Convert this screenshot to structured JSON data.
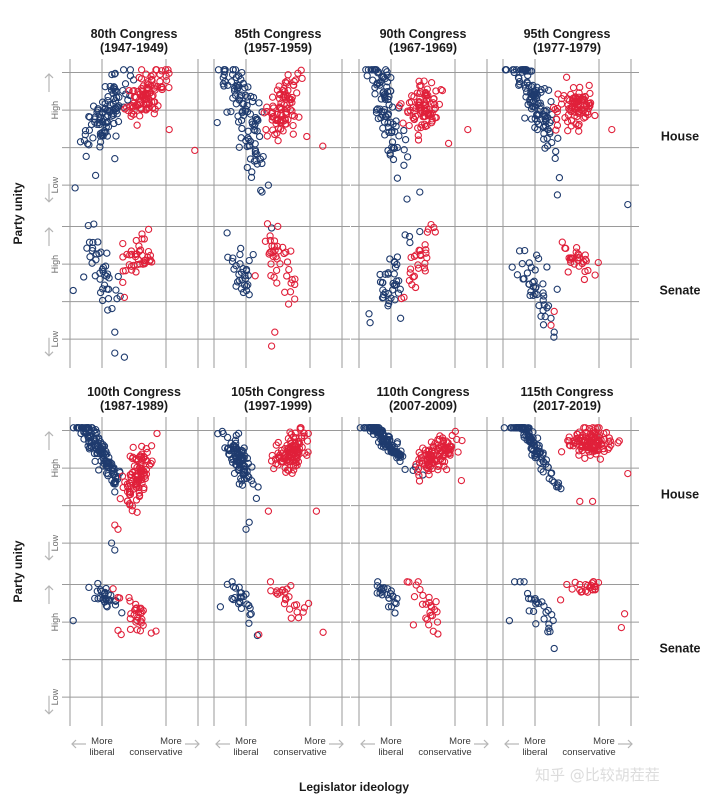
{
  "chart_data": {
    "type": "scatter",
    "y_axis_title": "Party unity",
    "x_axis_title": "Legislator ideology",
    "y_tick_high": "High",
    "y_tick_low": "Low",
    "x_label_left": [
      "More",
      "liberal"
    ],
    "x_label_right": [
      "More",
      "conservative"
    ],
    "row_labels": [
      "House",
      "Senate",
      "House",
      "Senate"
    ],
    "colors": {
      "democrat": "#1f3b6e",
      "republican": "#e0203a",
      "grid": "#9a9a9a",
      "arrow": "#b5b5b5"
    },
    "x_range": [
      -1,
      1
    ],
    "y_range": [
      0,
      1
    ],
    "watermark": "知乎 @比较胡茬茬",
    "panels": [
      {
        "title": "80th Congress",
        "years": "(1947-1949)",
        "chamber": "House",
        "dem": {
          "cx": -0.45,
          "cy": 0.66,
          "sx": 0.17,
          "sy": 0.1,
          "n": 100,
          "slope": 0.55,
          "out": [
            [
              -0.92,
              0.13
            ],
            [
              -0.6,
              0.22
            ],
            [
              -0.3,
              0.34
            ]
          ]
        },
        "rep": {
          "cx": 0.2,
          "cy": 0.8,
          "sx": 0.16,
          "sy": 0.08,
          "n": 100,
          "slope": 0.3,
          "out": [
            [
              0.95,
              0.4
            ],
            [
              0.55,
              0.55
            ]
          ]
        }
      },
      {
        "title": "85th Congress",
        "years": "(1957-1959)",
        "chamber": "House",
        "dem": {
          "cx": -0.55,
          "cy": 0.7,
          "sx": 0.17,
          "sy": 0.15,
          "n": 100,
          "slope": -1.1,
          "out": [
            [
              -0.25,
              0.1
            ],
            [
              -0.15,
              0.15
            ],
            [
              -0.95,
              0.6
            ]
          ]
        },
        "rep": {
          "cx": 0.08,
          "cy": 0.7,
          "sx": 0.15,
          "sy": 0.09,
          "n": 90,
          "slope": 0.35,
          "out": [
            [
              0.7,
              0.43
            ],
            [
              0.45,
              0.5
            ]
          ]
        }
      },
      {
        "title": "90th Congress",
        "years": "(1967-1969)",
        "chamber": "House",
        "dem": {
          "cx": -0.58,
          "cy": 0.72,
          "sx": 0.15,
          "sy": 0.13,
          "n": 90,
          "slope": -1.0,
          "out": [
            [
              -0.25,
              0.05
            ],
            [
              -0.05,
              0.1
            ],
            [
              -0.4,
              0.2
            ]
          ]
        },
        "rep": {
          "cx": 0.0,
          "cy": 0.7,
          "sx": 0.15,
          "sy": 0.09,
          "n": 90,
          "slope": 0.2,
          "out": [
            [
              0.7,
              0.55
            ],
            [
              0.4,
              0.45
            ]
          ]
        }
      },
      {
        "title": "95th Congress",
        "years": "(1977-1979)",
        "chamber": "House",
        "dem": {
          "cx": -0.5,
          "cy": 0.75,
          "sx": 0.18,
          "sy": 0.1,
          "n": 110,
          "slope": -0.9,
          "out": [
            [
              -0.65,
              0.97
            ],
            [
              -0.58,
              0.97
            ],
            [
              -0.15,
              0.08
            ],
            [
              0.95,
              0.01
            ]
          ]
        },
        "rep": {
          "cx": 0.12,
          "cy": 0.7,
          "sx": 0.15,
          "sy": 0.09,
          "n": 90,
          "slope": 0.0,
          "out": [
            [
              0.7,
              0.55
            ]
          ]
        }
      },
      {
        "title": "",
        "years": "",
        "chamber": "Senate",
        "dem": {
          "cx": -0.5,
          "cy": 0.63,
          "sx": 0.13,
          "sy": 0.12,
          "n": 40,
          "slope": -0.6,
          "out": [
            [
              -0.95,
              0.5
            ],
            [
              -0.3,
              0.2
            ],
            [
              -0.3,
              0.05
            ],
            [
              -0.15,
              0.02
            ]
          ]
        },
        "rep": {
          "cx": 0.05,
          "cy": 0.75,
          "sx": 0.12,
          "sy": 0.07,
          "n": 40,
          "slope": 0.2,
          "out": [
            [
              -0.15,
              0.45
            ]
          ]
        }
      },
      {
        "title": "",
        "years": "",
        "chamber": "Senate",
        "dem": {
          "cx": -0.55,
          "cy": 0.63,
          "sx": 0.13,
          "sy": 0.08,
          "n": 30,
          "slope": -0.4,
          "out": [
            [
              -0.1,
              0.95
            ]
          ]
        },
        "rep": {
          "cx": 0.0,
          "cy": 0.7,
          "sx": 0.15,
          "sy": 0.12,
          "n": 40,
          "slope": -0.4,
          "out": [
            [
              -0.1,
              0.1
            ],
            [
              -0.05,
              0.2
            ]
          ]
        }
      },
      {
        "title": "",
        "years": "",
        "chamber": "Senate",
        "dem": {
          "cx": -0.5,
          "cy": 0.55,
          "sx": 0.15,
          "sy": 0.1,
          "n": 40,
          "slope": 0.5,
          "out": [
            [
              -0.35,
              0.3
            ]
          ]
        },
        "rep": {
          "cx": -0.05,
          "cy": 0.7,
          "sx": 0.13,
          "sy": 0.1,
          "n": 30,
          "slope": 1.0,
          "out": []
        }
      },
      {
        "title": "",
        "years": "",
        "chamber": "Senate",
        "dem": {
          "cx": -0.5,
          "cy": 0.55,
          "sx": 0.15,
          "sy": 0.1,
          "n": 40,
          "slope": -0.7,
          "out": [
            [
              -0.25,
              0.3
            ],
            [
              -0.2,
              0.2
            ]
          ]
        },
        "rep": {
          "cx": 0.15,
          "cy": 0.72,
          "sx": 0.13,
          "sy": 0.05,
          "n": 30,
          "slope": -0.3,
          "out": [
            [
              -0.25,
              0.25
            ],
            [
              -0.2,
              0.35
            ]
          ]
        }
      },
      {
        "title": "100th Congress",
        "years": "(1987-1989)",
        "chamber": "House",
        "dem": {
          "cx": -0.55,
          "cy": 0.82,
          "sx": 0.18,
          "sy": 0.06,
          "n": 130,
          "slope": -0.7,
          "out": [
            [
              -0.3,
              0.1
            ],
            [
              -0.35,
              0.15
            ]
          ]
        },
        "rep": {
          "cx": 0.05,
          "cy": 0.63,
          "sx": 0.12,
          "sy": 0.09,
          "n": 100,
          "slope": 0.6,
          "out": [
            [
              -0.3,
              0.28
            ],
            [
              -0.25,
              0.25
            ]
          ]
        }
      },
      {
        "title": "105th Congress",
        "years": "(1997-1999)",
        "chamber": "House",
        "dem": {
          "cx": -0.6,
          "cy": 0.75,
          "sx": 0.13,
          "sy": 0.08,
          "n": 100,
          "slope": -0.6,
          "out": [
            [
              -0.45,
              0.3
            ],
            [
              -0.5,
              0.25
            ]
          ]
        },
        "rep": {
          "cx": 0.2,
          "cy": 0.8,
          "sx": 0.15,
          "sy": 0.07,
          "n": 110,
          "slope": 0.4,
          "out": [
            [
              0.6,
              0.38
            ],
            [
              -0.15,
              0.38
            ]
          ]
        }
      },
      {
        "title": "110th Congress",
        "years": "(2007-2009)",
        "chamber": "House",
        "dem": {
          "cx": -0.6,
          "cy": 0.9,
          "sx": 0.17,
          "sy": 0.03,
          "n": 120,
          "slope": -0.5,
          "out": []
        },
        "rep": {
          "cx": 0.2,
          "cy": 0.78,
          "sx": 0.16,
          "sy": 0.06,
          "n": 110,
          "slope": 0.3,
          "out": [
            [
              0.6,
              0.6
            ]
          ]
        }
      },
      {
        "title": "115th Congress",
        "years": "(2017-2019)",
        "chamber": "House",
        "dem": {
          "cx": -0.55,
          "cy": 0.88,
          "sx": 0.16,
          "sy": 0.04,
          "n": 100,
          "slope": -0.8,
          "out": [
            [
              -0.25,
              0.65
            ]
          ]
        },
        "rep": {
          "cx": 0.35,
          "cy": 0.88,
          "sx": 0.17,
          "sy": 0.05,
          "n": 120,
          "slope": 0.05,
          "out": [
            [
              0.2,
              0.45
            ],
            [
              0.4,
              0.45
            ],
            [
              0.95,
              0.65
            ]
          ]
        }
      },
      {
        "title": "",
        "years": "",
        "chamber": "Senate",
        "dem": {
          "cx": -0.45,
          "cy": 0.87,
          "sx": 0.12,
          "sy": 0.04,
          "n": 30,
          "slope": -0.3,
          "out": [
            [
              -0.95,
              0.7
            ]
          ]
        },
        "rep": {
          "cx": 0.05,
          "cy": 0.77,
          "sx": 0.13,
          "sy": 0.06,
          "n": 30,
          "slope": -0.5,
          "out": [
            [
              -0.25,
              0.63
            ],
            [
              -0.2,
              0.6
            ]
          ]
        }
      },
      {
        "title": "",
        "years": "",
        "chamber": "Senate",
        "dem": {
          "cx": -0.55,
          "cy": 0.85,
          "sx": 0.1,
          "sy": 0.06,
          "n": 25,
          "slope": -0.4,
          "out": [
            [
              -0.9,
              0.8
            ]
          ]
        },
        "rep": {
          "cx": 0.15,
          "cy": 0.85,
          "sx": 0.15,
          "sy": 0.05,
          "n": 25,
          "slope": -0.2,
          "out": [
            [
              -0.3,
              0.6
            ]
          ]
        }
      },
      {
        "title": "",
        "years": "",
        "chamber": "Senate",
        "dem": {
          "cx": -0.55,
          "cy": 0.88,
          "sx": 0.09,
          "sy": 0.05,
          "n": 25,
          "slope": -0.4,
          "out": []
        },
        "rep": {
          "cx": 0.05,
          "cy": 0.8,
          "sx": 0.12,
          "sy": 0.07,
          "n": 25,
          "slope": -0.8,
          "out": [
            [
              -0.15,
              0.67
            ]
          ]
        }
      },
      {
        "title": "",
        "years": "",
        "chamber": "Senate",
        "dem": {
          "cx": -0.45,
          "cy": 0.82,
          "sx": 0.18,
          "sy": 0.07,
          "n": 25,
          "slope": -0.6,
          "out": [
            [
              -0.9,
              0.7
            ],
            [
              -0.2,
              0.5
            ]
          ]
        },
        "rep": {
          "cx": 0.35,
          "cy": 0.95,
          "sx": 0.12,
          "sy": 0.03,
          "n": 25,
          "slope": 0.0,
          "out": [
            [
              0.9,
              0.75
            ],
            [
              0.85,
              0.65
            ],
            [
              -0.1,
              0.85
            ]
          ]
        }
      }
    ]
  }
}
